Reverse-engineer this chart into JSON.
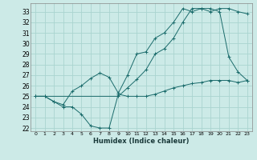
{
  "xlabel": "Humidex (Indice chaleur)",
  "bg_color": "#cceae7",
  "grid_color": "#aad4d0",
  "line_color": "#1a6b6b",
  "xlim": [
    -0.5,
    23.5
  ],
  "ylim": [
    21.7,
    33.8
  ],
  "yticks": [
    22,
    23,
    24,
    25,
    26,
    27,
    28,
    29,
    30,
    31,
    32,
    33
  ],
  "xticks": [
    0,
    1,
    2,
    3,
    4,
    5,
    6,
    7,
    8,
    9,
    10,
    11,
    12,
    13,
    14,
    15,
    16,
    17,
    18,
    19,
    20,
    21,
    22,
    23
  ],
  "series1_x": [
    0,
    1,
    2,
    3,
    4,
    5,
    6,
    7,
    8,
    9,
    10,
    11,
    12,
    13,
    14,
    15,
    16,
    17,
    18,
    19,
    20,
    21,
    22,
    23
  ],
  "series1_y": [
    25.0,
    25.0,
    24.5,
    24.0,
    24.0,
    23.3,
    22.2,
    22.0,
    22.0,
    25.2,
    25.0,
    25.0,
    25.0,
    25.2,
    25.5,
    25.8,
    26.0,
    26.2,
    26.3,
    26.5,
    26.5,
    26.5,
    26.3,
    26.5
  ],
  "series2_x": [
    0,
    1,
    2,
    3,
    4,
    5,
    6,
    7,
    8,
    9,
    10,
    11,
    12,
    13,
    14,
    15,
    16,
    17,
    18,
    19,
    20,
    21,
    22,
    23
  ],
  "series2_y": [
    25.0,
    25.0,
    24.5,
    24.2,
    25.5,
    26.0,
    26.7,
    27.2,
    26.8,
    25.3,
    27.0,
    29.0,
    29.2,
    30.5,
    31.0,
    32.0,
    33.3,
    33.0,
    33.3,
    33.3,
    33.0,
    28.7,
    27.3,
    26.5
  ],
  "series3_x": [
    0,
    9,
    10,
    11,
    12,
    13,
    14,
    15,
    16,
    17,
    18,
    19,
    20,
    21,
    22,
    23
  ],
  "series3_y": [
    25.0,
    25.0,
    25.8,
    26.6,
    27.5,
    29.0,
    29.5,
    30.5,
    32.0,
    33.3,
    33.3,
    33.0,
    33.3,
    33.3,
    33.0,
    32.8
  ]
}
